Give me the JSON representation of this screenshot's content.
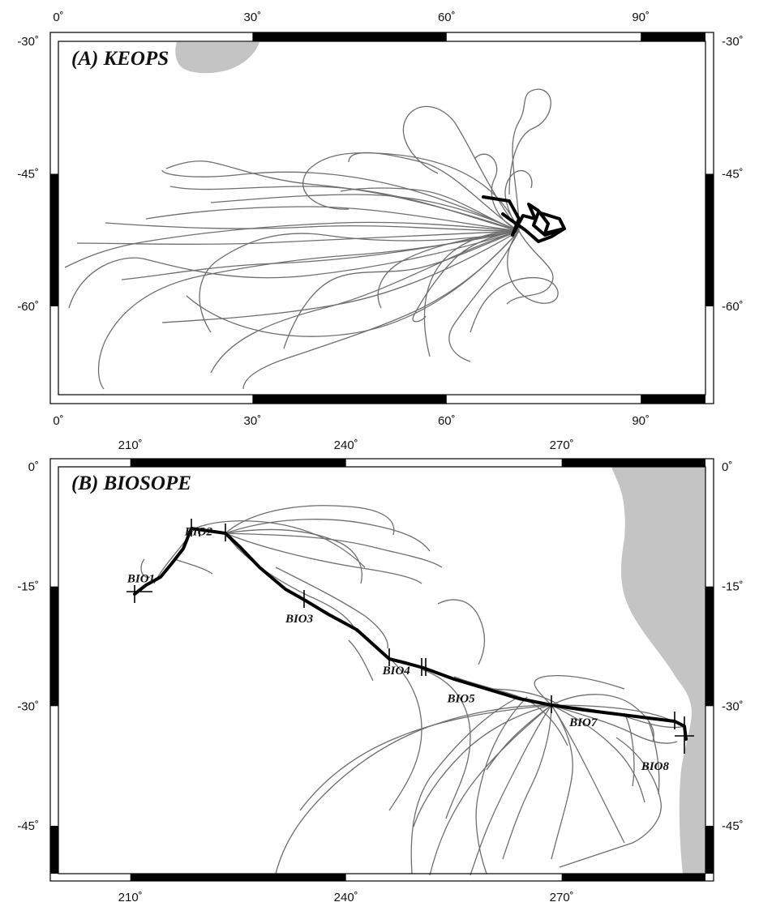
{
  "panels": [
    {
      "id": "keops",
      "title": "(A)  KEOPS",
      "lon_range": [
        0,
        100
      ],
      "lat_range": [
        -70,
        -30
      ],
      "lon_ticks": [
        0,
        30,
        60,
        90
      ],
      "lat_ticks": [
        -30,
        -45,
        -60
      ],
      "lon_tick_labels": [
        "0˚",
        "30˚",
        "60˚",
        "90˚"
      ],
      "lat_tick_labels": [
        "-30˚",
        "-45˚",
        "-60˚"
      ],
      "land_color": "#c4c4c4",
      "trajectory_color": "#6e6e6e",
      "ship_track_color": "#000000",
      "station_labels": []
    },
    {
      "id": "biosope",
      "title": "(B)  BIOSOPE",
      "lon_range": [
        200,
        290
      ],
      "lat_range": [
        -51,
        0
      ],
      "lon_ticks": [
        210,
        240,
        270
      ],
      "lat_ticks": [
        0,
        -15,
        -30,
        -45
      ],
      "lon_tick_labels": [
        "210˚",
        "240˚",
        "270˚"
      ],
      "lat_tick_labels": [
        "0˚",
        "-15˚",
        "-30˚",
        "-45˚"
      ],
      "land_color": "#c4c4c4",
      "trajectory_color": "#6e6e6e",
      "ship_track_color": "#000000",
      "station_labels": [
        {
          "name": "BIO1",
          "lon": 211.5,
          "lat": -14.5
        },
        {
          "name": "BIO2",
          "lon": 219.5,
          "lat": -8.6
        },
        {
          "name": "BIO3",
          "lon": 233.5,
          "lat": -19.5
        },
        {
          "name": "BIO4",
          "lon": 247.0,
          "lat": -26.0
        },
        {
          "name": "BIO5",
          "lon": 256.0,
          "lat": -29.5
        },
        {
          "name": "BIO7",
          "lon": 273.0,
          "lat": -32.5
        },
        {
          "name": "BIO8",
          "lon": 283.0,
          "lat": -38.0
        }
      ]
    }
  ]
}
